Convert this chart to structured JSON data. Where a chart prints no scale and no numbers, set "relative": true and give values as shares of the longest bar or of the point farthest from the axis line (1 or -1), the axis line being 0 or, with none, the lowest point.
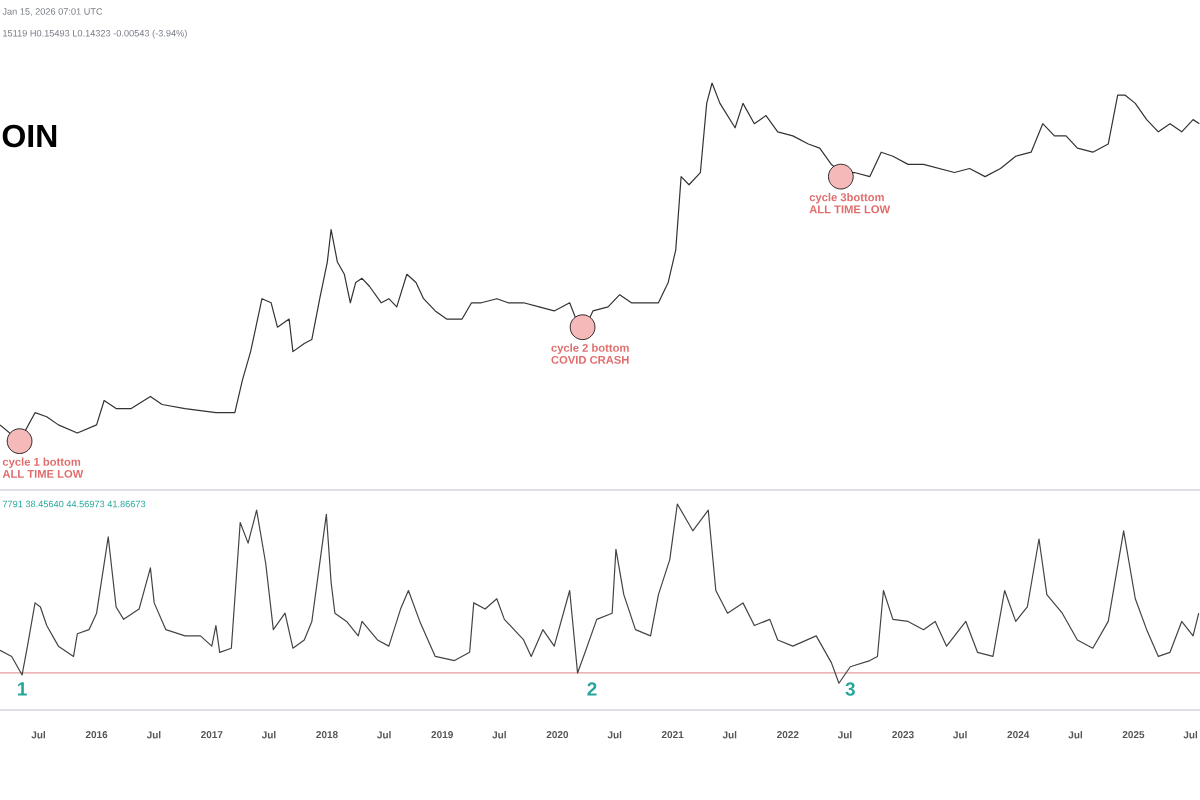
{
  "chart_data": [
    {
      "type": "line",
      "relative": true,
      "title": "OIN",
      "xlim": [
        "2015-03-01",
        "2025-07-31"
      ],
      "tick_labels": false,
      "annotations": [
        "Jan 15, 2026 07:01 UTC",
        "15119 H0.15493 L0.14323 -0.00543 (-3.94%)",
        {
          "text": "cycle 1 bottom",
          "x": "2015-05-02",
          "y": 0.12
        },
        {
          "text": "ALL TIME LOW",
          "x": "2015-05-02",
          "y": 0.12
        },
        {
          "text": "cycle 2 bottom",
          "x": "2020-03-21",
          "y": 0.4
        },
        {
          "text": "COVID CRASH",
          "x": "2020-03-21",
          "y": 0.4
        },
        {
          "text": "cycle 3bottom",
          "x": "2022-06-18",
          "y": 0.77
        },
        {
          "text": "ALL TIME LOW",
          "x": "2022-06-18",
          "y": 0.77
        }
      ],
      "series": [
        {
          "type": "scatter",
          "marker": "circle",
          "color": "#f6b9b9",
          "x": [
            "2015-05-02",
            "2020-03-21",
            "2022-06-18"
          ],
          "values": [
            0.12,
            0.4,
            0.77
          ]
        },
        {
          "color": "#333333",
          "x": [
            "2015-03-01",
            "2015-05-02",
            "2015-06-20",
            "2015-07-27",
            "2015-09-02",
            "2015-11-01",
            "2016-01-01",
            "2016-01-25",
            "2016-03-03",
            "2016-04-20",
            "2016-06-20",
            "2016-07-27",
            "2016-10-08",
            "2017-01-14",
            "2017-03-15",
            "2017-04-08",
            "2017-05-04",
            "2017-06-09",
            "2017-07-08",
            "2017-07-28",
            "2017-09-03",
            "2017-09-15",
            "2017-10-21",
            "2017-11-14",
            "2017-12-09",
            "2018-01-02",
            "2018-01-14",
            "2018-02-03",
            "2018-02-25",
            "2018-03-16",
            "2018-04-02",
            "2018-04-22",
            "2018-05-16",
            "2018-06-22",
            "2018-07-16",
            "2018-08-10",
            "2018-09-11",
            "2018-10-10",
            "2018-11-03",
            "2018-12-10",
            "2019-01-15",
            "2019-03-05",
            "2019-04-04",
            "2019-05-05",
            "2019-06-23",
            "2019-07-29",
            "2019-09-16",
            "2019-11-04",
            "2019-12-22",
            "2020-02-09",
            "2020-03-05",
            "2020-03-29",
            "2020-04-23",
            "2020-06-10",
            "2020-07-17",
            "2020-08-23",
            "2020-10-11",
            "2020-11-17",
            "2020-12-18",
            "2021-01-11",
            "2021-01-28",
            "2021-02-22",
            "2021-03-30",
            "2021-04-19",
            "2021-05-06",
            "2021-05-31",
            "2021-06-24",
            "2021-07-18",
            "2021-08-12",
            "2021-09-17",
            "2021-10-24",
            "2021-11-30",
            "2022-01-17",
            "2022-03-07",
            "2022-04-12",
            "2022-05-19",
            "2022-06-25",
            "2022-07-31",
            "2022-09-18",
            "2022-10-24",
            "2022-11-30",
            "2023-01-17",
            "2023-03-07",
            "2023-04-25",
            "2023-06-13",
            "2023-07-31",
            "2023-09-18",
            "2023-11-06",
            "2023-12-24",
            "2024-02-11",
            "2024-03-19",
            "2024-04-25",
            "2024-06-01",
            "2024-07-07",
            "2024-08-25",
            "2024-10-13",
            "2024-11-12",
            "2024-12-06",
            "2025-01-07",
            "2025-02-12",
            "2025-03-21",
            "2025-04-27",
            "2025-06-03",
            "2025-07-09",
            "2025-07-29"
          ],
          "values": [
            0.16,
            0.12,
            0.19,
            0.18,
            0.16,
            0.14,
            0.16,
            0.22,
            0.2,
            0.2,
            0.23,
            0.21,
            0.2,
            0.19,
            0.19,
            0.27,
            0.34,
            0.47,
            0.46,
            0.4,
            0.42,
            0.34,
            0.36,
            0.37,
            0.47,
            0.56,
            0.64,
            0.56,
            0.53,
            0.46,
            0.51,
            0.52,
            0.5,
            0.46,
            0.47,
            0.45,
            0.53,
            0.51,
            0.47,
            0.44,
            0.42,
            0.42,
            0.46,
            0.46,
            0.47,
            0.46,
            0.46,
            0.45,
            0.44,
            0.46,
            0.41,
            0.4,
            0.44,
            0.45,
            0.48,
            0.46,
            0.46,
            0.46,
            0.51,
            0.59,
            0.77,
            0.75,
            0.78,
            0.95,
            1,
            0.95,
            0.92,
            0.89,
            0.95,
            0.9,
            0.92,
            0.88,
            0.87,
            0.85,
            0.84,
            0.8,
            0.78,
            0.78,
            0.77,
            0.83,
            0.82,
            0.8,
            0.8,
            0.79,
            0.78,
            0.79,
            0.77,
            0.79,
            0.82,
            0.83,
            0.9,
            0.87,
            0.87,
            0.84,
            0.83,
            0.85,
            0.97,
            0.97,
            0.95,
            0.91,
            0.88,
            0.9,
            0.88,
            0.91,
            0.9
          ]
        }
      ]
    },
    {
      "type": "line",
      "relative": true,
      "xlim": [
        "2015-03-01",
        "2025-07-31"
      ],
      "tick_labels": "x",
      "xticks": [
        {
          "value": "2015-07",
          "label": "Jul"
        },
        {
          "value": "2016",
          "label": "2016"
        },
        {
          "value": "2016-07",
          "label": "Jul"
        },
        {
          "value": "2017",
          "label": "2017"
        },
        {
          "value": "2017-07",
          "label": "Jul"
        },
        {
          "value": "2018",
          "label": "2018"
        },
        {
          "value": "2018-07",
          "label": "Jul"
        },
        {
          "value": "2019",
          "label": "2019"
        },
        {
          "value": "2019-07",
          "label": "Jul"
        },
        {
          "value": "2020",
          "label": "2020"
        },
        {
          "value": "2020-07",
          "label": "Jul"
        },
        {
          "value": "2021",
          "label": "2021"
        },
        {
          "value": "2021-07",
          "label": "Jul"
        },
        {
          "value": "2022",
          "label": "2022"
        },
        {
          "value": "2022-07",
          "label": "Jul"
        },
        {
          "value": "2023",
          "label": "2023"
        },
        {
          "value": "2023-07",
          "label": "Jul"
        },
        {
          "value": "2024",
          "label": "2024"
        },
        {
          "value": "2024-07",
          "label": "Jul"
        },
        {
          "value": "2025",
          "label": "2025"
        },
        {
          "value": "2025-07",
          "label": "Jul"
        }
      ],
      "ref_lines": [
        {
          "axis": "y",
          "value": 0.18,
          "color": "#e39b9b"
        }
      ],
      "annotations": [
        "7791 38.45640 44.56973 41.86673",
        {
          "text": "1",
          "x": "2015-05-10",
          "y": 0.18
        },
        {
          "text": "2",
          "x": "2020-04-20",
          "y": 0.18
        },
        {
          "text": "3",
          "x": "2022-07-18",
          "y": 0.18
        }
      ],
      "series": [
        {
          "color": "#444444",
          "x": [
            "2015-03-01",
            "2015-04-07",
            "2015-05-10",
            "2015-05-27",
            "2015-06-20",
            "2015-07-07",
            "2015-07-27",
            "2015-09-02",
            "2015-10-20",
            "2015-11-01",
            "2015-12-08",
            "2016-01-01",
            "2016-02-07",
            "2016-03-03",
            "2016-03-27",
            "2016-05-15",
            "2016-06-20",
            "2016-07-02",
            "2016-08-08",
            "2016-10-08",
            "2016-11-26",
            "2017-01-01",
            "2017-01-14",
            "2017-01-26",
            "2017-03-04",
            "2017-04-01",
            "2017-04-26",
            "2017-05-23",
            "2017-06-21",
            "2017-07-15",
            "2017-08-21",
            "2017-09-15",
            "2017-10-21",
            "2017-11-14",
            "2017-12-30",
            "2018-01-14",
            "2018-01-26",
            "2018-03-04",
            "2018-04-10",
            "2018-04-22",
            "2018-06-10",
            "2018-07-16",
            "2018-08-22",
            "2018-09-16",
            "2018-10-22",
            "2018-12-10",
            "2019-02-09",
            "2019-03-29",
            "2019-04-11",
            "2019-05-17",
            "2019-06-23",
            "2019-07-17",
            "2019-09-16",
            "2019-10-10",
            "2019-11-16",
            "2019-12-22",
            "2020-02-09",
            "2020-03-05",
            "2020-03-29",
            "2020-05-05",
            "2020-06-23",
            "2020-07-05",
            "2020-07-30",
            "2020-09-05",
            "2020-10-23",
            "2020-11-17",
            "2020-12-23",
            "2021-01-16",
            "2021-03-06",
            "2021-04-24",
            "2021-05-18",
            "2021-06-24",
            "2021-08-12",
            "2021-09-17",
            "2021-11-05",
            "2021-11-30",
            "2022-01-17",
            "2022-04-01",
            "2022-05-19",
            "2022-06-12",
            "2022-07-18",
            "2022-09-18",
            "2022-10-12",
            "2022-10-31",
            "2022-11-30",
            "2023-01-17",
            "2023-03-07",
            "2023-04-13",
            "2023-05-19",
            "2023-07-19",
            "2023-08-25",
            "2023-10-13",
            "2023-11-19",
            "2023-12-24",
            "2024-01-30",
            "2024-03-07",
            "2024-04-01",
            "2024-05-20",
            "2024-07-07",
            "2024-08-25",
            "2024-10-13",
            "2024-12-01",
            "2025-01-07",
            "2025-02-12",
            "2025-03-21",
            "2025-04-27",
            "2025-06-03",
            "2025-07-09",
            "2025-07-27"
          ],
          "values": [
            0.29,
            0.26,
            0.17,
            0.31,
            0.52,
            0.5,
            0.41,
            0.31,
            0.26,
            0.37,
            0.39,
            0.47,
            0.84,
            0.5,
            0.44,
            0.49,
            0.69,
            0.52,
            0.39,
            0.36,
            0.36,
            0.31,
            0.41,
            0.28,
            0.3,
            0.91,
            0.81,
            0.97,
            0.71,
            0.39,
            0.47,
            0.3,
            0.34,
            0.43,
            0.95,
            0.62,
            0.47,
            0.43,
            0.36,
            0.43,
            0.34,
            0.31,
            0.49,
            0.58,
            0.43,
            0.26,
            0.24,
            0.28,
            0.52,
            0.49,
            0.54,
            0.44,
            0.34,
            0.26,
            0.39,
            0.31,
            0.58,
            0.18,
            0.28,
            0.44,
            0.47,
            0.78,
            0.56,
            0.39,
            0.36,
            0.56,
            0.73,
            1,
            0.87,
            0.97,
            0.58,
            0.47,
            0.52,
            0.41,
            0.44,
            0.34,
            0.31,
            0.36,
            0.23,
            0.13,
            0.21,
            0.24,
            0.26,
            0.58,
            0.44,
            0.43,
            0.39,
            0.43,
            0.31,
            0.43,
            0.28,
            0.26,
            0.58,
            0.43,
            0.5,
            0.83,
            0.56,
            0.47,
            0.34,
            0.3,
            0.43,
            0.87,
            0.54,
            0.39,
            0.26,
            0.28,
            0.43,
            0.36,
            0.47
          ]
        }
      ]
    }
  ]
}
